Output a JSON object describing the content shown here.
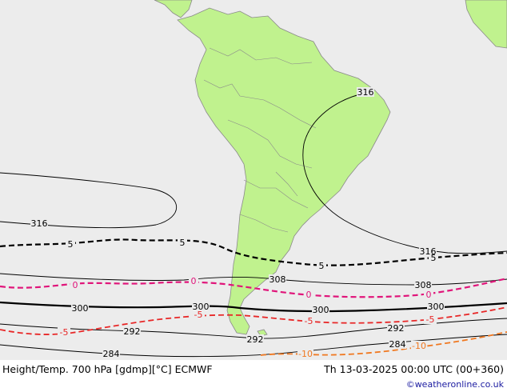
{
  "footer": {
    "title": "Height/Temp. 700 hPa [gdmp][°C] ECMWF",
    "valid_time": "Th 13-03-2025 00:00 UTC (00+360)",
    "credit": "©weatheronline.co.uk"
  },
  "colors": {
    "ocean": "#ececec",
    "land": "#c0f28e",
    "coast": "#8a8a8a",
    "height_contour": "#000000",
    "temp_0": "#e0157a",
    "temp_minus5": "#e82828",
    "temp_minus10": "#f07820"
  },
  "height_labels": {
    "h316_a": "316",
    "h316_b": "316",
    "h316_c": "316",
    "h308_a": "308",
    "h308_b": "308",
    "h300_a": "300",
    "h300_b": "300",
    "h300_c": "300",
    "h300_d": "300",
    "h292_a": "292",
    "h292_b": "292",
    "h292_c": "292",
    "h284_a": "284",
    "h284_b": "284"
  },
  "temp_labels": {
    "t5_a": "5",
    "t5_b": "5",
    "t5_c": "5",
    "t5_d": "5",
    "t0_a": "0",
    "t0_b": "0",
    "t0_c": "0",
    "t0_d": "0",
    "tm5_a": "-5",
    "tm5_b": "-5",
    "tm5_c": "-5",
    "tm5_d": "-5",
    "tm10_a": "-10",
    "tm10_b": "-10"
  }
}
